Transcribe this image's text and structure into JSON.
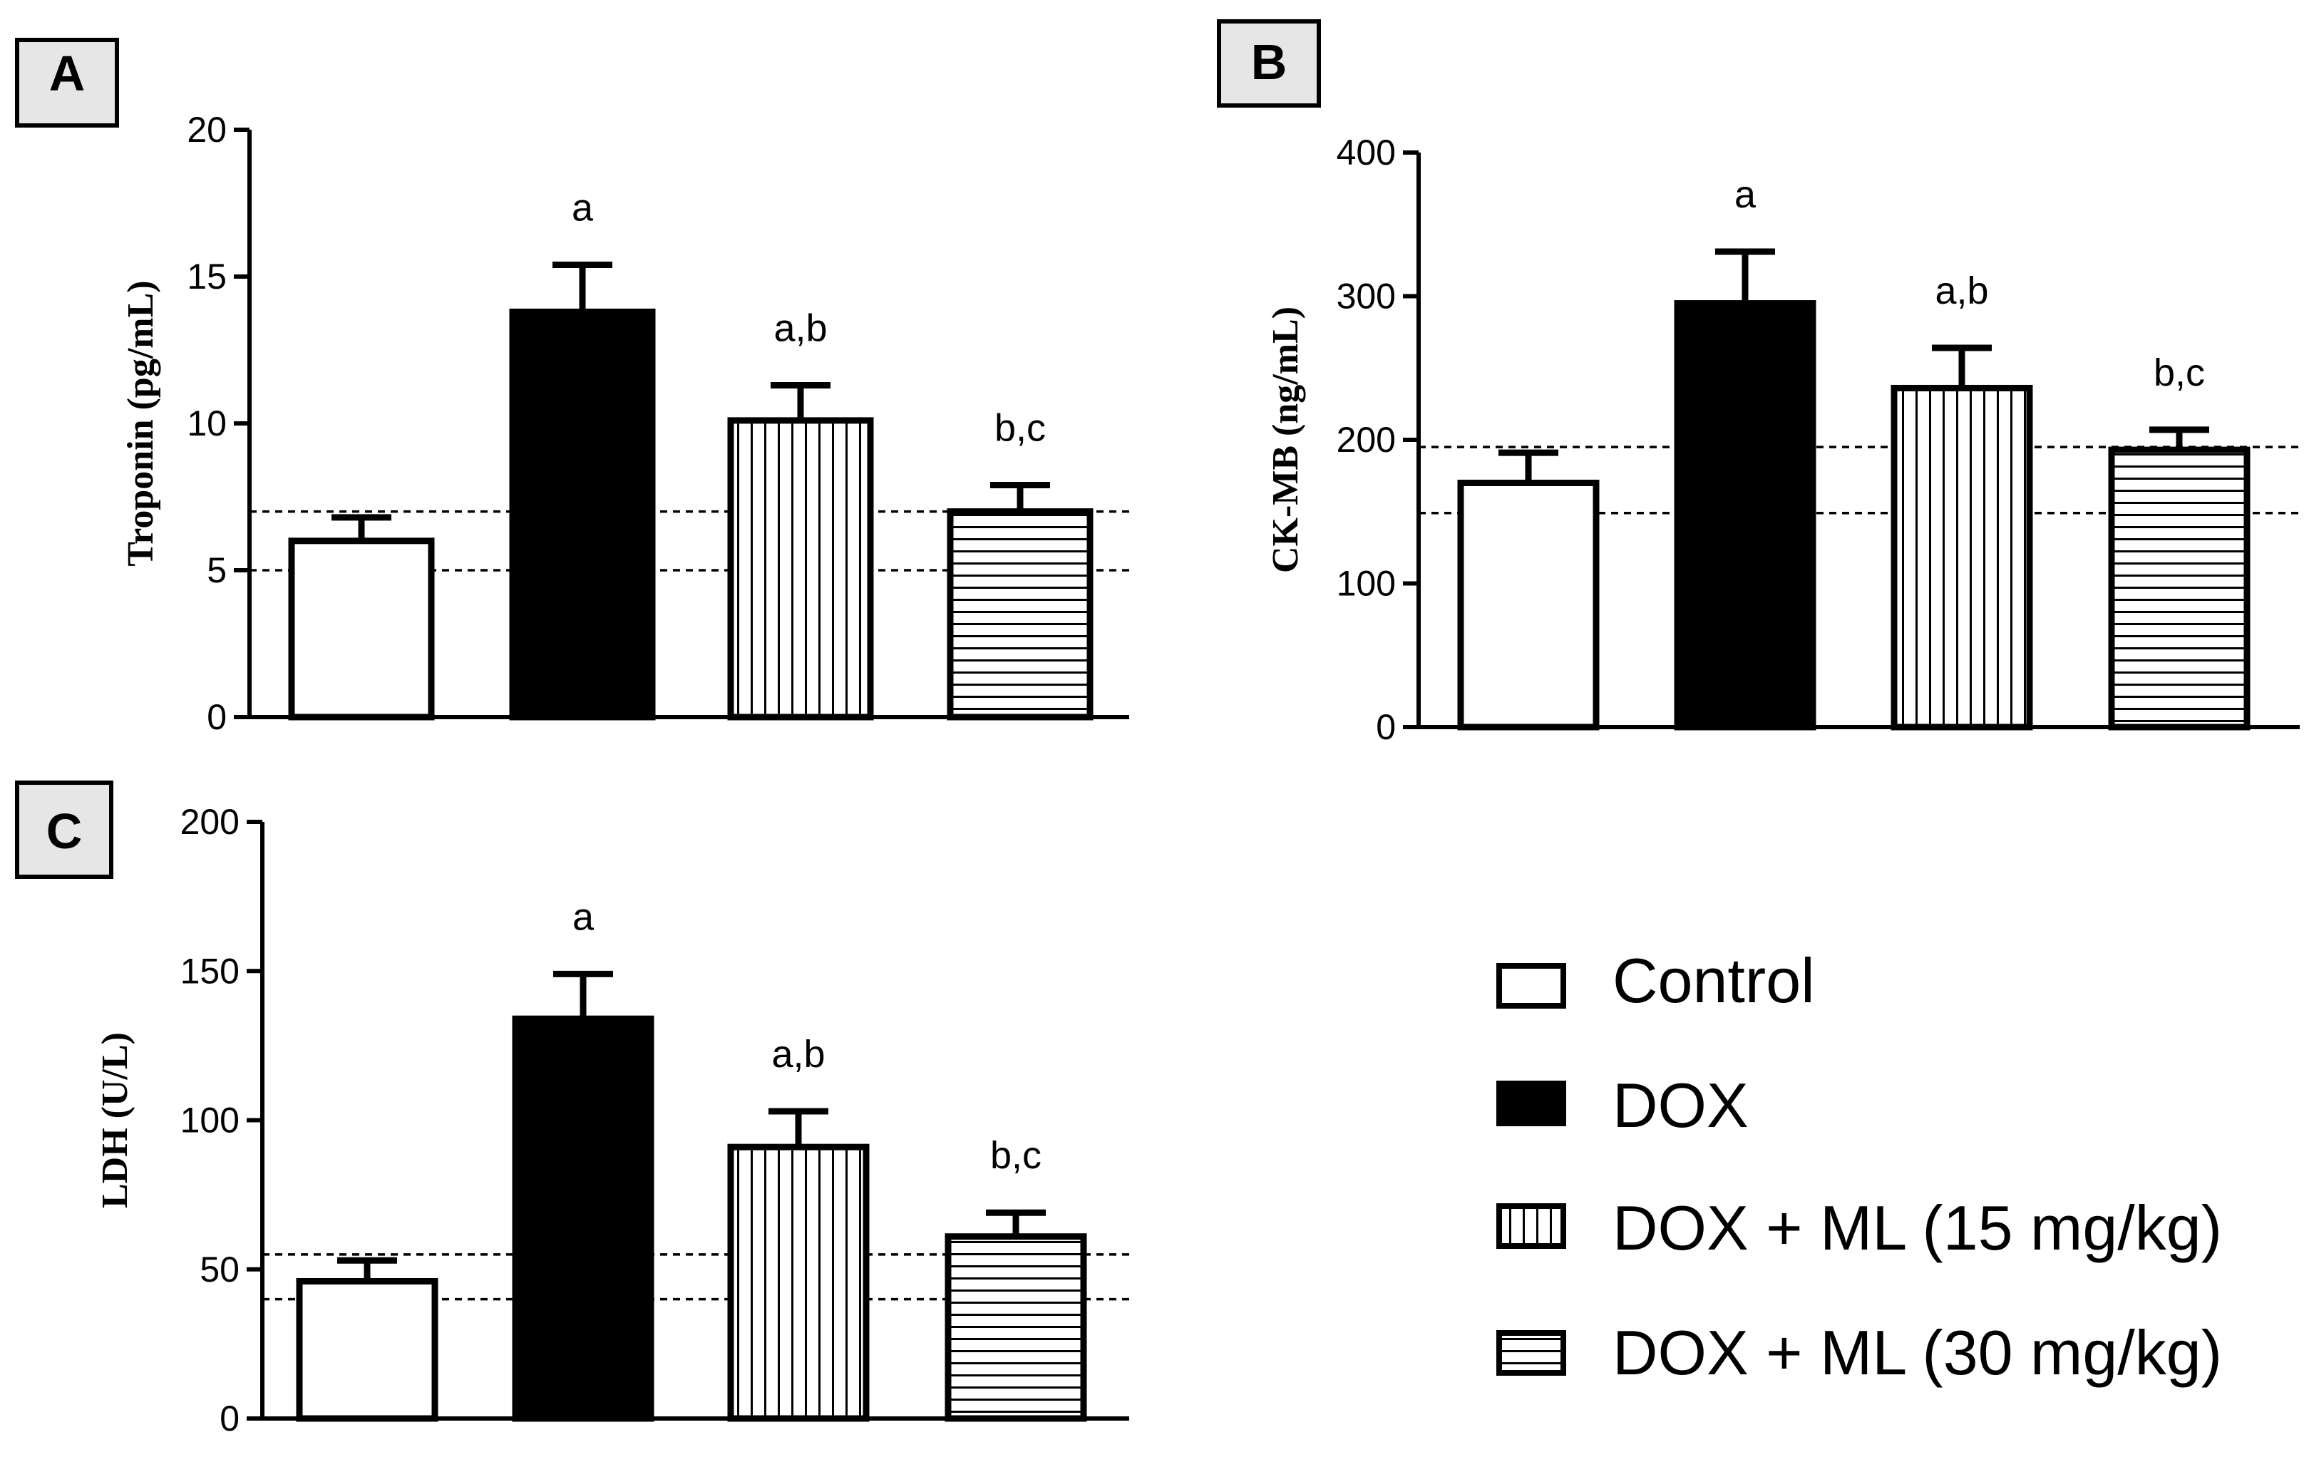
{
  "groups": [
    "Control",
    "DOX",
    "DOX + ML (15 mg/kg)",
    "DOX + ML (30 mg/kg)"
  ],
  "chart_data": [
    {
      "type": "bar",
      "panel_label": "A",
      "ylabel": "Troponin (pg/mL)",
      "ylim": [
        0,
        20
      ],
      "yticks": [
        "0",
        "5",
        "10",
        "15",
        "20"
      ],
      "categories": [
        "Control",
        "DOX",
        "DOX + ML (15 mg/kg)",
        "DOX + ML (30 mg/kg)"
      ],
      "values": [
        6.0,
        13.8,
        10.1,
        7.0
      ],
      "errors": [
        0.8,
        1.6,
        1.2,
        0.9
      ],
      "annotations": [
        "",
        "a",
        "a,b",
        "b,c"
      ],
      "reference_lines": [
        5.0,
        7.0
      ]
    },
    {
      "type": "bar",
      "panel_label": "B",
      "ylabel": "CK-MB (ng/mL)",
      "ylim": [
        0,
        400
      ],
      "yticks": [
        "0",
        "100",
        "200",
        "300",
        "400"
      ],
      "categories": [
        "Control",
        "DOX",
        "DOX + ML (15 mg/kg)",
        "DOX + ML (30 mg/kg)"
      ],
      "values": [
        170,
        295,
        236,
        193
      ],
      "errors": [
        21,
        36,
        28,
        14
      ],
      "annotations": [
        "",
        "a",
        "a,b",
        "b,c"
      ],
      "reference_lines": [
        149,
        195
      ]
    },
    {
      "type": "bar",
      "panel_label": "C",
      "ylabel": "LDH (U/L)",
      "ylim": [
        0,
        200
      ],
      "yticks": [
        "0",
        "50",
        "100",
        "150",
        "200"
      ],
      "categories": [
        "Control",
        "DOX",
        "DOX + ML (15 mg/kg)",
        "DOX + ML (30 mg/kg)"
      ],
      "values": [
        46,
        134,
        91,
        61
      ],
      "errors": [
        7,
        15,
        12,
        8
      ],
      "annotations": [
        "",
        "a",
        "a,b",
        "b,c"
      ],
      "reference_lines": [
        40,
        55
      ]
    }
  ],
  "legend": [
    {
      "label": "Control",
      "pattern": "empty"
    },
    {
      "label": "DOX",
      "pattern": "solid"
    },
    {
      "label": "DOX + ML (15 mg/kg)",
      "pattern": "vertical"
    },
    {
      "label": "DOX + ML (30 mg/kg)",
      "pattern": "horizontal"
    }
  ],
  "colors": {
    "ink": "#000000",
    "panel_label_bg": "#e6e6e6",
    "background": "#ffffff"
  }
}
